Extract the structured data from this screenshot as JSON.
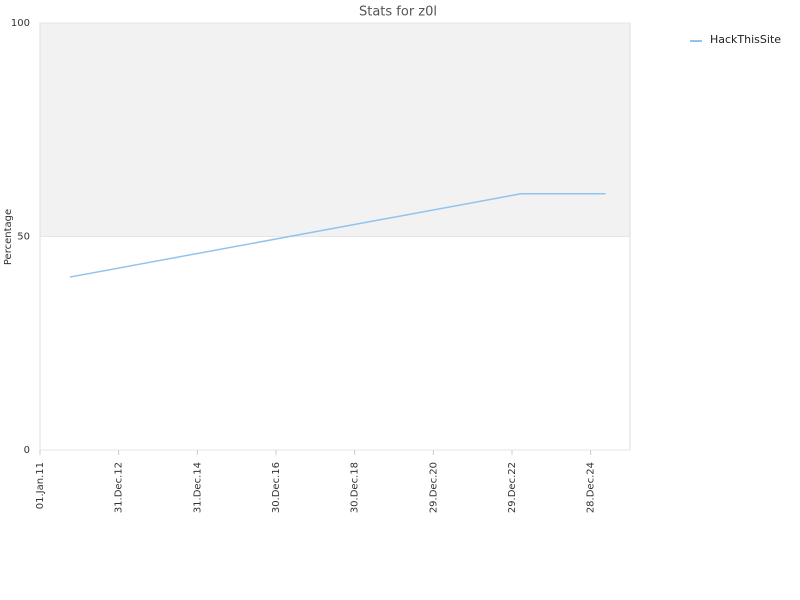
{
  "chart_data": {
    "type": "line",
    "title": "Stats for z0l",
    "y_label": "Percentage",
    "x": [
      2011.76,
      2023.22,
      2025.38
    ],
    "series": [
      {
        "name": "HackThisSite",
        "color": "#90c4ee",
        "values": [
          40.5,
          60,
          60
        ]
      }
    ],
    "xlim": [
      2011,
      2026
    ],
    "xticks": [
      {
        "value": 2011,
        "label": "01.Jan.11"
      },
      {
        "value": 2013,
        "label": "31.Dec.12"
      },
      {
        "value": 2015,
        "label": "31.Dec.14"
      },
      {
        "value": 2017,
        "label": "30.Dec.16"
      },
      {
        "value": 2019,
        "label": "30.Dec.18"
      },
      {
        "value": 2021,
        "label": "29.Dec.20"
      },
      {
        "value": 2023,
        "label": "29.Dec.22"
      },
      {
        "value": 2025,
        "label": "28.Dec.24"
      }
    ],
    "ylim": [
      0,
      100
    ],
    "yticks": [
      0,
      50,
      100
    ],
    "plot_band": {
      "from": 50,
      "to": 100,
      "color": "#f2f2f2"
    },
    "grid": true,
    "legend": "top-right"
  }
}
